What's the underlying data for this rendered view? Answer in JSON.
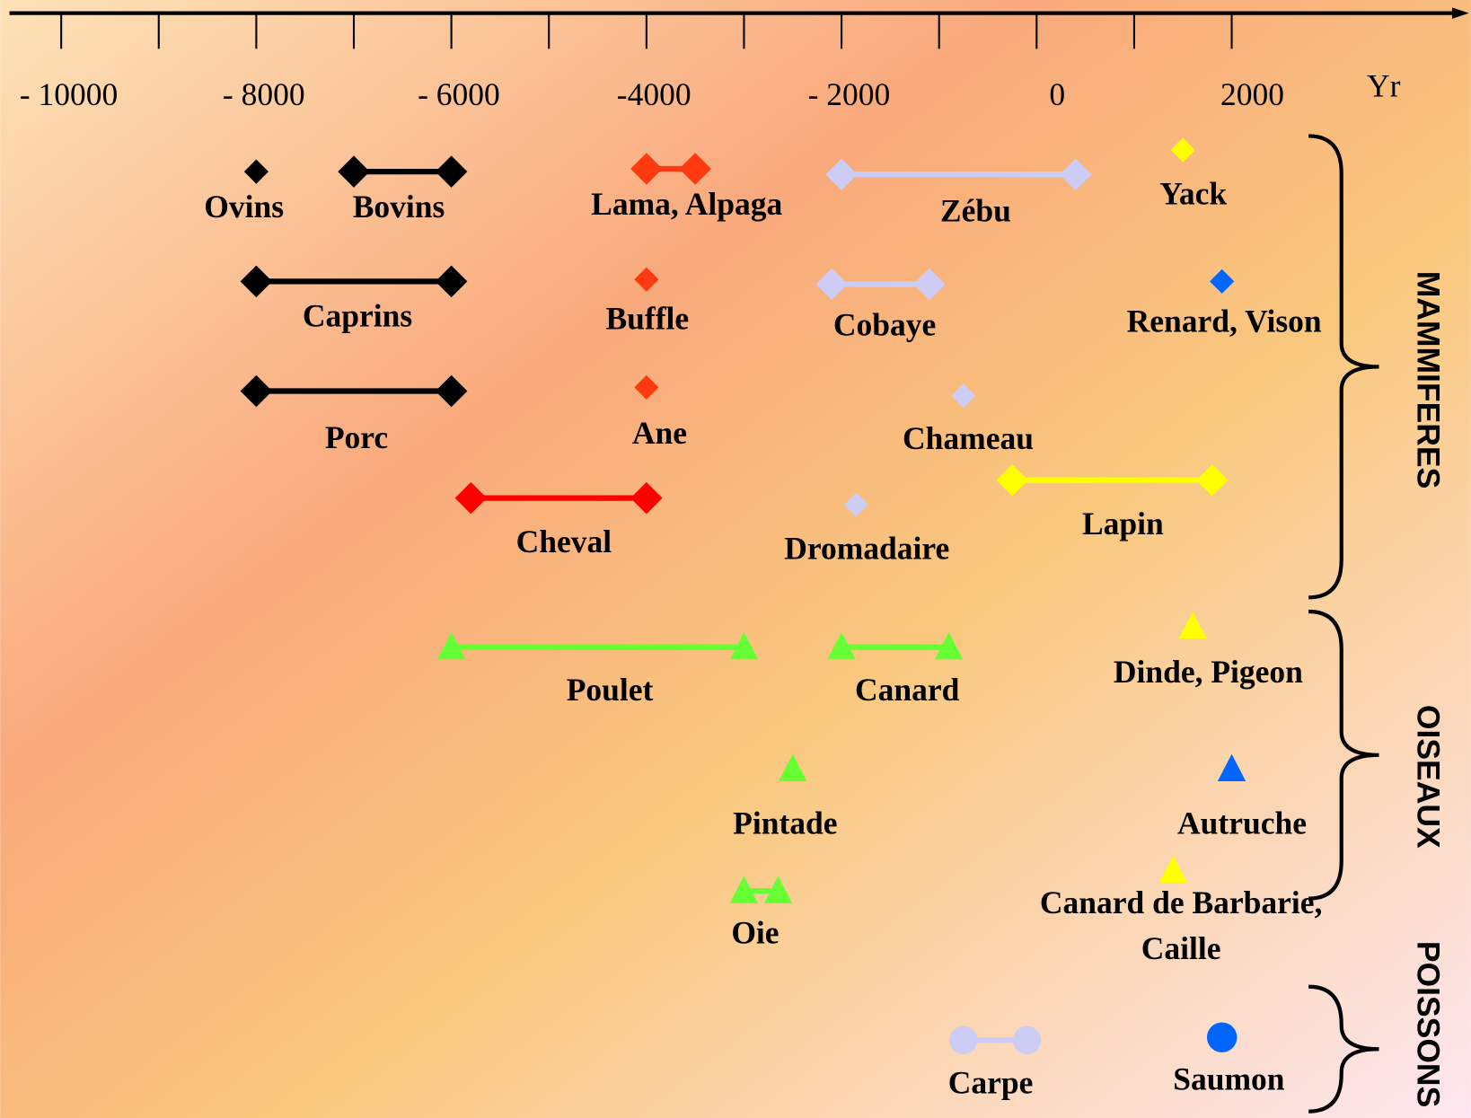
{
  "chart_data": {
    "type": "timeline",
    "x_label": "Yr",
    "xlim": [
      -10530,
      4375
    ],
    "xticks": [
      {
        "value": -10000,
        "label": "- 10000"
      },
      -9000,
      {
        "value": -8000,
        "label": "- 8000"
      },
      -7000,
      {
        "value": -6000,
        "label": "- 6000"
      },
      -5000,
      {
        "value": -4000,
        "label": "-4000"
      },
      -3000,
      {
        "value": -2000,
        "label": "-  2000"
      },
      -1000,
      0,
      1000,
      2000
    ],
    "groups": [
      {
        "name": "MAMMIFERES",
        "marker": "diamond",
        "items": [
          {
            "label": "Ovins",
            "color": "#000000",
            "values": [
              -8000
            ]
          },
          {
            "label": "Bovins",
            "color": "#000000",
            "values": [
              -7000,
              -6000
            ]
          },
          {
            "label": "Lama, Alpaga",
            "color": "#ff3a10",
            "values": [
              -4000,
              -3500
            ]
          },
          {
            "label": "Zébu",
            "color": "#ccccf5",
            "values": [
              -2000,
              400
            ]
          },
          {
            "label": "Yack",
            "color": "#ffff00",
            "values": [
              1500
            ]
          },
          {
            "label": "Caprins",
            "color": "#000000",
            "values": [
              -8000,
              -6000
            ]
          },
          {
            "label": "Buffle",
            "color": "#ff3a10",
            "values": [
              -4000
            ]
          },
          {
            "label": "Cobaye",
            "color": "#ccccf5",
            "values": [
              -2100,
              -1100
            ]
          },
          {
            "label": "Renard, Vison",
            "color": "#0066ff",
            "values": [
              1900
            ]
          },
          {
            "label": "Porc",
            "color": "#000000",
            "values": [
              -8000,
              -6000
            ]
          },
          {
            "label": "Ane",
            "color": "#ff3a10",
            "values": [
              -4000
            ]
          },
          {
            "label": "Chameau",
            "color": "#ccccf5",
            "values": [
              -750
            ]
          },
          {
            "label": "Cheval",
            "color": "#ff0000",
            "values": [
              -5800,
              -4000
            ]
          },
          {
            "label": "Dromadaire",
            "color": "#ccccf5",
            "values": [
              -1850
            ]
          },
          {
            "label": "Lapin",
            "color": "#ffff00",
            "values": [
              -250,
              1800
            ]
          }
        ]
      },
      {
        "name": "OISEAUX",
        "marker": "triangle",
        "items": [
          {
            "label": "Poulet",
            "color": "#66ff33",
            "values": [
              -6000,
              -3000
            ]
          },
          {
            "label": "Canard",
            "color": "#66ff33",
            "values": [
              -2000,
              -900
            ]
          },
          {
            "label": "Dinde, Pigeon",
            "color": "#ffff00",
            "values": [
              1600
            ]
          },
          {
            "label": "Pintade",
            "color": "#66ff33",
            "values": [
              -2500
            ]
          },
          {
            "label": "Autruche",
            "color": "#0066ff",
            "values": [
              2000
            ]
          },
          {
            "label": "Oie",
            "color": "#66ff33",
            "values": [
              -3000,
              -2650
            ]
          },
          {
            "label": "Canard de Barbarie,\nCaille",
            "color": "#ffff00",
            "values": [
              1400
            ]
          }
        ]
      },
      {
        "name": "POISSONS",
        "marker": "circle",
        "items": [
          {
            "label": "Carpe",
            "color": "#ccccf5",
            "values": [
              -750,
              -100
            ]
          },
          {
            "label": "Saumon",
            "color": "#0066ff",
            "values": [
              1900
            ]
          }
        ]
      }
    ]
  }
}
